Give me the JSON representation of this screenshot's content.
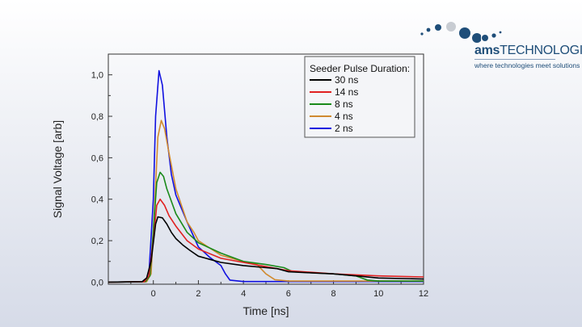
{
  "logo": {
    "brand_bold": "ams",
    "brand_rest": "TECHNOLOGIES",
    "tagline": "where technologies meet solutions"
  },
  "chart_data": {
    "type": "line",
    "title": "",
    "xlabel": "Time [ns]",
    "ylabel": "Signal Voltage [arb]",
    "xlim": [
      -2,
      12
    ],
    "ylim": [
      -0.01,
      1.1
    ],
    "xticks": [
      0,
      2,
      4,
      6,
      8,
      10,
      12
    ],
    "xtick_labels": [
      "0",
      "2",
      "4",
      "6",
      "8",
      "10",
      "12"
    ],
    "yticks": [
      0,
      0.2,
      0.4,
      0.6,
      0.8,
      1.0
    ],
    "ytick_labels": [
      "0,0",
      "0,2",
      "0,4",
      "0,6",
      "0,8",
      "1,0"
    ],
    "grid": false,
    "legend_title": "Seeder Pulse Duration:",
    "legend_position": "top-right",
    "series": [
      {
        "name": "30 ns",
        "color": "#000000",
        "points": [
          [
            -2,
            0
          ],
          [
            -0.5,
            0.002
          ],
          [
            -0.3,
            0.02
          ],
          [
            -0.1,
            0.1
          ],
          [
            0.1,
            0.28
          ],
          [
            0.2,
            0.315
          ],
          [
            0.4,
            0.31
          ],
          [
            0.6,
            0.28
          ],
          [
            0.8,
            0.24
          ],
          [
            1,
            0.21
          ],
          [
            1.3,
            0.18
          ],
          [
            1.6,
            0.155
          ],
          [
            2,
            0.125
          ],
          [
            2.5,
            0.11
          ],
          [
            3,
            0.095
          ],
          [
            4,
            0.08
          ],
          [
            5,
            0.07
          ],
          [
            5.5,
            0.065
          ],
          [
            6,
            0.05
          ],
          [
            7,
            0.045
          ],
          [
            8,
            0.04
          ],
          [
            9,
            0.03
          ],
          [
            10,
            0.02
          ],
          [
            12,
            0.015
          ]
        ]
      },
      {
        "name": "14 ns",
        "color": "#e02020",
        "points": [
          [
            -2,
            0
          ],
          [
            -0.4,
            0.002
          ],
          [
            -0.2,
            0.03
          ],
          [
            0,
            0.2
          ],
          [
            0.15,
            0.37
          ],
          [
            0.3,
            0.4
          ],
          [
            0.5,
            0.37
          ],
          [
            0.7,
            0.32
          ],
          [
            1,
            0.27
          ],
          [
            1.5,
            0.2
          ],
          [
            2,
            0.16
          ],
          [
            3,
            0.115
          ],
          [
            4,
            0.095
          ],
          [
            5,
            0.075
          ],
          [
            6,
            0.055
          ],
          [
            8,
            0.04
          ],
          [
            10,
            0.03
          ],
          [
            12,
            0.025
          ]
        ]
      },
      {
        "name": "8 ns",
        "color": "#1a8a1a",
        "points": [
          [
            -2,
            0
          ],
          [
            -0.35,
            0.002
          ],
          [
            -0.15,
            0.03
          ],
          [
            0,
            0.25
          ],
          [
            0.15,
            0.48
          ],
          [
            0.3,
            0.53
          ],
          [
            0.45,
            0.51
          ],
          [
            0.6,
            0.45
          ],
          [
            1,
            0.33
          ],
          [
            1.5,
            0.24
          ],
          [
            2,
            0.19
          ],
          [
            3,
            0.14
          ],
          [
            4,
            0.1
          ],
          [
            5,
            0.085
          ],
          [
            5.8,
            0.07
          ],
          [
            6.2,
            0.05
          ],
          [
            8,
            0.04
          ],
          [
            9,
            0.03
          ],
          [
            9.5,
            0.01
          ],
          [
            10,
            0.005
          ],
          [
            12,
            0.005
          ]
        ]
      },
      {
        "name": "4 ns",
        "color": "#d08a30",
        "points": [
          [
            -2,
            0
          ],
          [
            -0.3,
            0.002
          ],
          [
            -0.1,
            0.04
          ],
          [
            0.05,
            0.35
          ],
          [
            0.2,
            0.7
          ],
          [
            0.35,
            0.78
          ],
          [
            0.5,
            0.74
          ],
          [
            0.7,
            0.62
          ],
          [
            1,
            0.45
          ],
          [
            1.5,
            0.29
          ],
          [
            1.8,
            0.24
          ],
          [
            2,
            0.2
          ],
          [
            3,
            0.13
          ],
          [
            4,
            0.1
          ],
          [
            4.6,
            0.085
          ],
          [
            5,
            0.04
          ],
          [
            5.4,
            0.012
          ],
          [
            6,
            0.005
          ],
          [
            12,
            0.005
          ]
        ]
      },
      {
        "name": "2 ns",
        "color": "#1010e0",
        "points": [
          [
            -2,
            0
          ],
          [
            -0.4,
            0.002
          ],
          [
            -0.2,
            0.03
          ],
          [
            0,
            0.4
          ],
          [
            0.1,
            0.8
          ],
          [
            0.25,
            1.02
          ],
          [
            0.4,
            0.95
          ],
          [
            0.6,
            0.7
          ],
          [
            0.8,
            0.52
          ],
          [
            1,
            0.42
          ],
          [
            1.5,
            0.29
          ],
          [
            2,
            0.17
          ],
          [
            2.5,
            0.12
          ],
          [
            3,
            0.08
          ],
          [
            3.2,
            0.04
          ],
          [
            3.4,
            0.01
          ],
          [
            4,
            0.003
          ],
          [
            12,
            0.003
          ]
        ]
      }
    ]
  }
}
